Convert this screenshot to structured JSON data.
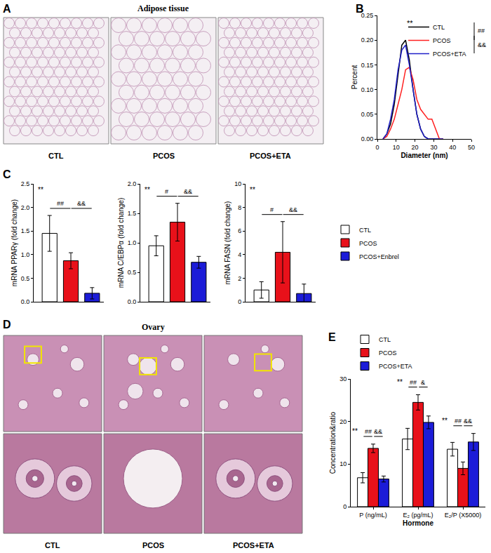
{
  "panel_images": [
    {
      "panel": "A",
      "title": "Adipose tissue",
      "labels": [
        "CTL",
        "PCOS",
        "PCOS+ETA"
      ]
    },
    {
      "panel": "D",
      "title": "Ovary",
      "labels": [
        "CTL",
        "PCOS",
        "PCOS+ETA"
      ]
    }
  ],
  "chart_data": [
    {
      "panel": "B",
      "type": "line",
      "x": [
        3,
        5,
        7,
        9,
        11,
        13,
        15,
        17,
        19,
        21,
        23,
        25,
        27,
        29,
        31,
        33,
        35
      ],
      "xlim": [
        0,
        50
      ],
      "xticks": [
        0,
        10,
        20,
        30,
        40,
        50
      ],
      "ylim": [
        0,
        0.25
      ],
      "yticks": [
        {
          "value": 0,
          "label": "0.00"
        },
        {
          "value": 0.05,
          "label": "0.05"
        },
        {
          "value": 0.1,
          "label": "0.10"
        },
        {
          "value": 0.15,
          "label": "0.15"
        },
        {
          "value": 0.2,
          "label": "0.20"
        },
        {
          "value": 0.25,
          "label": "0.25"
        }
      ],
      "x_label": "Diameter (nm)",
      "y_label": "Percent",
      "legend": "top right",
      "series": [
        {
          "name": "CTL",
          "color": "#000000",
          "values": [
            0,
            0.01,
            0.03,
            0.07,
            0.13,
            0.19,
            0.2,
            0.16,
            0.1,
            0.05,
            0.02,
            0.005,
            0,
            0,
            0,
            0,
            0
          ]
        },
        {
          "name": "PCOS",
          "color": "#ff2020",
          "values": [
            0,
            0.005,
            0.02,
            0.04,
            0.07,
            0.1,
            0.14,
            0.145,
            0.12,
            0.08,
            0.06,
            0.05,
            0.04,
            0.04,
            0.02,
            0,
            0
          ]
        },
        {
          "name": "PCOS+ETA",
          "color": "#2020c8",
          "values": [
            0,
            0.01,
            0.04,
            0.08,
            0.14,
            0.18,
            0.19,
            0.15,
            0.1,
            0.05,
            0.02,
            0.005,
            0,
            0,
            0,
            0,
            0
          ]
        }
      ],
      "annotations": [
        {
          "text": "**"
        },
        {
          "text": "##",
          "between": [
            "CTL",
            "PCOS"
          ]
        },
        {
          "text": "&&",
          "between": [
            "PCOS",
            "PCOS+ETA"
          ]
        }
      ]
    },
    {
      "panel": "C",
      "type": "bar",
      "y_label": "mRNA PPARγ (fold change)",
      "tick_labels": "y",
      "ylim": [
        0,
        2.5
      ],
      "yticks": [
        {
          "value": 0,
          "label": "0.0"
        },
        0.5,
        {
          "value": 1,
          "label": "1.0"
        },
        1.5,
        {
          "value": 2,
          "label": "2.0"
        },
        2.5
      ],
      "series": [
        {
          "name": "CTL",
          "color": "#ffffff",
          "values": [
            1.45
          ],
          "errors": [
            0.38
          ]
        },
        {
          "name": "PCOS",
          "color": "#e8111a",
          "values": [
            0.87
          ],
          "errors": [
            0.17
          ]
        },
        {
          "name": "PCOS+Enbrel",
          "color": "#1c1cd8",
          "values": [
            0.18
          ],
          "errors": [
            0.12
          ]
        }
      ],
      "annotations": [
        {
          "text": "**"
        },
        {
          "text": "##",
          "between": [
            "CTL",
            "PCOS"
          ]
        },
        {
          "text": "&&",
          "between": [
            "PCOS",
            "PCOS+Enbrel"
          ]
        }
      ]
    },
    {
      "type": "bar",
      "y_label": "mRNA C/EBPα (fold change)",
      "tick_labels": "y",
      "ylim": [
        0,
        2
      ],
      "yticks": [
        {
          "value": 0,
          "label": "0.0"
        },
        0.5,
        {
          "value": 1,
          "label": "1.0"
        },
        1.5,
        {
          "value": 2,
          "label": "2.0"
        }
      ],
      "series": [
        {
          "name": "CTL",
          "color": "#ffffff",
          "values": [
            0.95
          ],
          "errors": [
            0.17
          ]
        },
        {
          "name": "PCOS",
          "color": "#e8111a",
          "values": [
            1.35
          ],
          "errors": [
            0.32
          ]
        },
        {
          "name": "PCOS+Enbrel",
          "color": "#1c1cd8",
          "values": [
            0.67
          ],
          "errors": [
            0.1
          ]
        }
      ],
      "annotations": [
        {
          "text": "**"
        },
        {
          "text": "#",
          "between": [
            "CTL",
            "PCOS"
          ]
        },
        {
          "text": "&&",
          "between": [
            "PCOS",
            "PCOS+Enbrel"
          ]
        }
      ]
    },
    {
      "type": "bar",
      "y_label": "mRNA FASN (fold change)",
      "tick_labels": "y",
      "legend": "right",
      "ylim": [
        0,
        10
      ],
      "yticks": [
        0,
        2,
        4,
        6,
        8,
        10
      ],
      "series": [
        {
          "name": "CTL",
          "color": "#ffffff",
          "values": [
            1.0
          ],
          "errors": [
            0.7
          ]
        },
        {
          "name": "PCOS",
          "color": "#e8111a",
          "values": [
            4.2
          ],
          "errors": [
            2.6
          ]
        },
        {
          "name": "PCOS+Enbrel",
          "color": "#1c1cd8",
          "values": [
            0.7
          ],
          "errors": [
            0.8
          ]
        }
      ],
      "annotations": [
        {
          "text": "**"
        },
        {
          "text": "#",
          "between": [
            "CTL",
            "PCOS"
          ]
        },
        {
          "text": "&&",
          "between": [
            "PCOS",
            "PCOS+Enbrel"
          ]
        }
      ]
    },
    {
      "panel": "E",
      "type": "bar",
      "x_label": "Hormone",
      "y_label": "Concentration&ratio",
      "legend": "top left",
      "categories": [
        "P (ng/mL)",
        "E₂ (pg/mL)",
        "E₂/P (X5000)"
      ],
      "ylim": [
        0,
        30
      ],
      "yticks": [
        0,
        10,
        20,
        30
      ],
      "series": [
        {
          "name": "CTL",
          "color": "#ffffff",
          "values": [
            6.8,
            15.9,
            13.5
          ],
          "errors": [
            1.2,
            2.5,
            1.6
          ]
        },
        {
          "name": "PCOS",
          "color": "#e8111a",
          "values": [
            13.7,
            24.5,
            9.0
          ],
          "errors": [
            1.0,
            1.8,
            1.5
          ]
        },
        {
          "name": "PCOS+ETA",
          "color": "#1c1cd8",
          "values": [
            6.5,
            19.8,
            15.2
          ],
          "errors": [
            0.7,
            1.5,
            2.0
          ]
        }
      ],
      "annotations": [
        {
          "text": "**",
          "category": "P (ng/mL)"
        },
        {
          "text": "##",
          "category": "P (ng/mL)",
          "between": [
            "CTL",
            "PCOS"
          ]
        },
        {
          "text": "&&",
          "category": "P (ng/mL)",
          "between": [
            "PCOS",
            "PCOS+ETA"
          ]
        },
        {
          "text": "**",
          "category": "E₂ (pg/mL)"
        },
        {
          "text": "##",
          "category": "E₂ (pg/mL)",
          "between": [
            "CTL",
            "PCOS"
          ]
        },
        {
          "text": "&",
          "category": "E₂ (pg/mL)",
          "between": [
            "PCOS",
            "PCOS+ETA"
          ]
        },
        {
          "text": "**",
          "category": "E₂/P (X5000)"
        },
        {
          "text": "##",
          "category": "E₂/P (X5000)",
          "between": [
            "CTL",
            "PCOS"
          ]
        },
        {
          "text": "&&",
          "category": "E₂/P (X5000)",
          "between": [
            "PCOS",
            "PCOS+ETA"
          ]
        }
      ]
    }
  ]
}
